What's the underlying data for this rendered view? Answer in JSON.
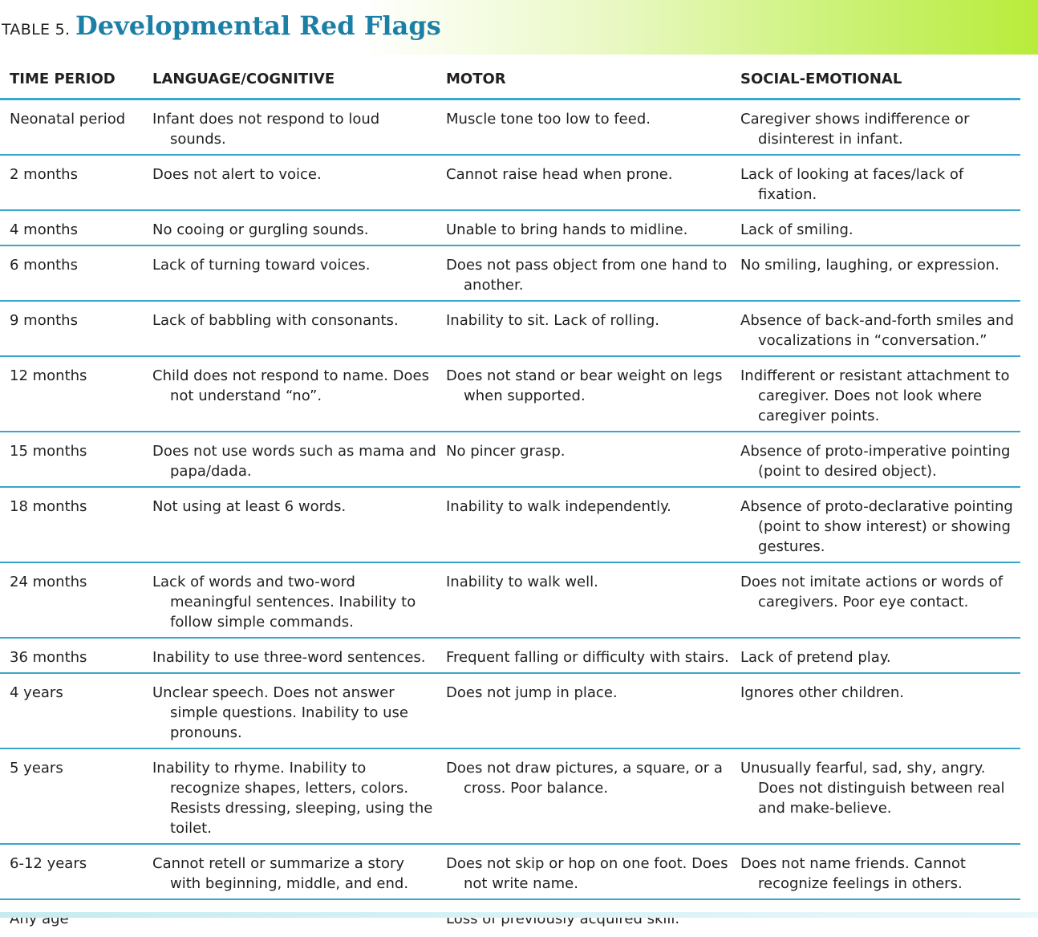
{
  "title": {
    "prefix": "TABLE 5.",
    "text": "Developmental Red Flags"
  },
  "headers": [
    "TIME PERIOD",
    "LANGUAGE/COGNITIVE",
    "MOTOR",
    "SOCIAL-EMOTIONAL"
  ],
  "rows": [
    [
      "Neonatal period",
      "Infant does not respond to loud sounds.",
      "Muscle tone too low to feed.",
      "Caregiver shows indifference or disinterest in infant."
    ],
    [
      "2 months",
      "Does not alert to voice.",
      "Cannot raise head when prone.",
      "Lack of looking at faces/lack of fixation."
    ],
    [
      "4 months",
      "No cooing or gurgling sounds.",
      "Unable to bring hands to midline.",
      "Lack of smiling."
    ],
    [
      "6 months",
      "Lack of turning toward voices.",
      "Does not pass object from one hand to another.",
      "No smiling, laughing, or expression."
    ],
    [
      "9 months",
      "Lack of babbling with consonants.",
      "Inability to sit. Lack of rolling.",
      "Absence of back-and-forth smiles and vocalizations in “conversation.”"
    ],
    [
      "12 months",
      "Child does not respond to name. Does not understand “no”.",
      "Does not stand or bear weight on legs when supported.",
      "Indifferent or resistant attachment to caregiver. Does not look where caregiver points."
    ],
    [
      "15 months",
      "Does not use words such as mama and papa/dada.",
      "No pincer grasp.",
      "Absence of proto-imperative pointing (point to desired object)."
    ],
    [
      "18 months",
      "Not using at least 6 words.",
      "Inability to walk independently.",
      "Absence of proto-declarative pointing (point to show interest) or showing gestures."
    ],
    [
      "24 months",
      "Lack of words and two-word meaningful sentences. Inability to follow simple commands.",
      "Inability to walk well.",
      "Does not imitate actions or words of caregivers. Poor eye contact."
    ],
    [
      "36 months",
      "Inability to use three-word sentences.",
      "Frequent falling or difficulty with stairs.",
      "Lack of pretend play."
    ],
    [
      "4 years",
      "Unclear speech. Does not answer simple questions. Inability to use pronouns.",
      "Does not jump in place.",
      "Ignores other children."
    ],
    [
      "5 years",
      "Inability to rhyme. Inability to recognize shapes, letters, colors. Resists dressing, sleeping, using the toilet.",
      "Does not draw pictures, a square, or a cross. Poor balance.",
      "Unusually fearful, sad, shy, angry. Does not distinguish between real and make-believe."
    ],
    [
      "6-12 years",
      "Cannot retell or summarize a story with beginning, middle, and end.",
      "Does not skip or hop on one foot. Does not write name.",
      "Does not name friends. Cannot recognize feelings in others."
    ],
    [
      "Any age",
      "",
      "Loss of previously acquired skill.",
      ""
    ]
  ]
}
